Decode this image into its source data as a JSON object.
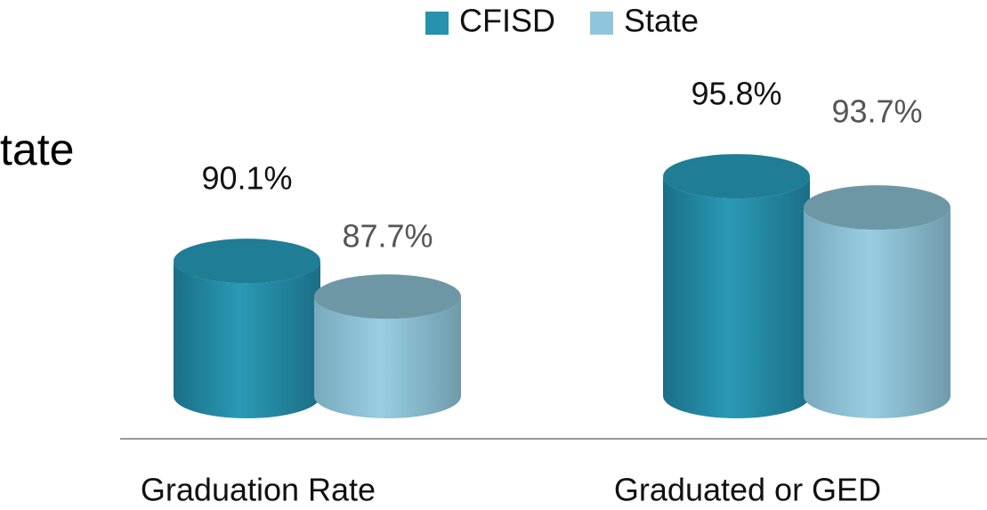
{
  "chart_data": {
    "type": "bar",
    "annotation": "tate",
    "categories": [
      "Graduation Rate",
      "Graduated or GED"
    ],
    "series": [
      {
        "name": "CFISD",
        "color": "#2592ae",
        "values": [
          90.1,
          95.8
        ],
        "value_labels": [
          "90.1%",
          "95.8%"
        ]
      },
      {
        "name": "State",
        "color": "#8fc6dc",
        "values": [
          87.7,
          93.7
        ],
        "value_labels": [
          "87.7%",
          "93.7%"
        ]
      }
    ],
    "ylim": [
      81,
      100
    ]
  }
}
